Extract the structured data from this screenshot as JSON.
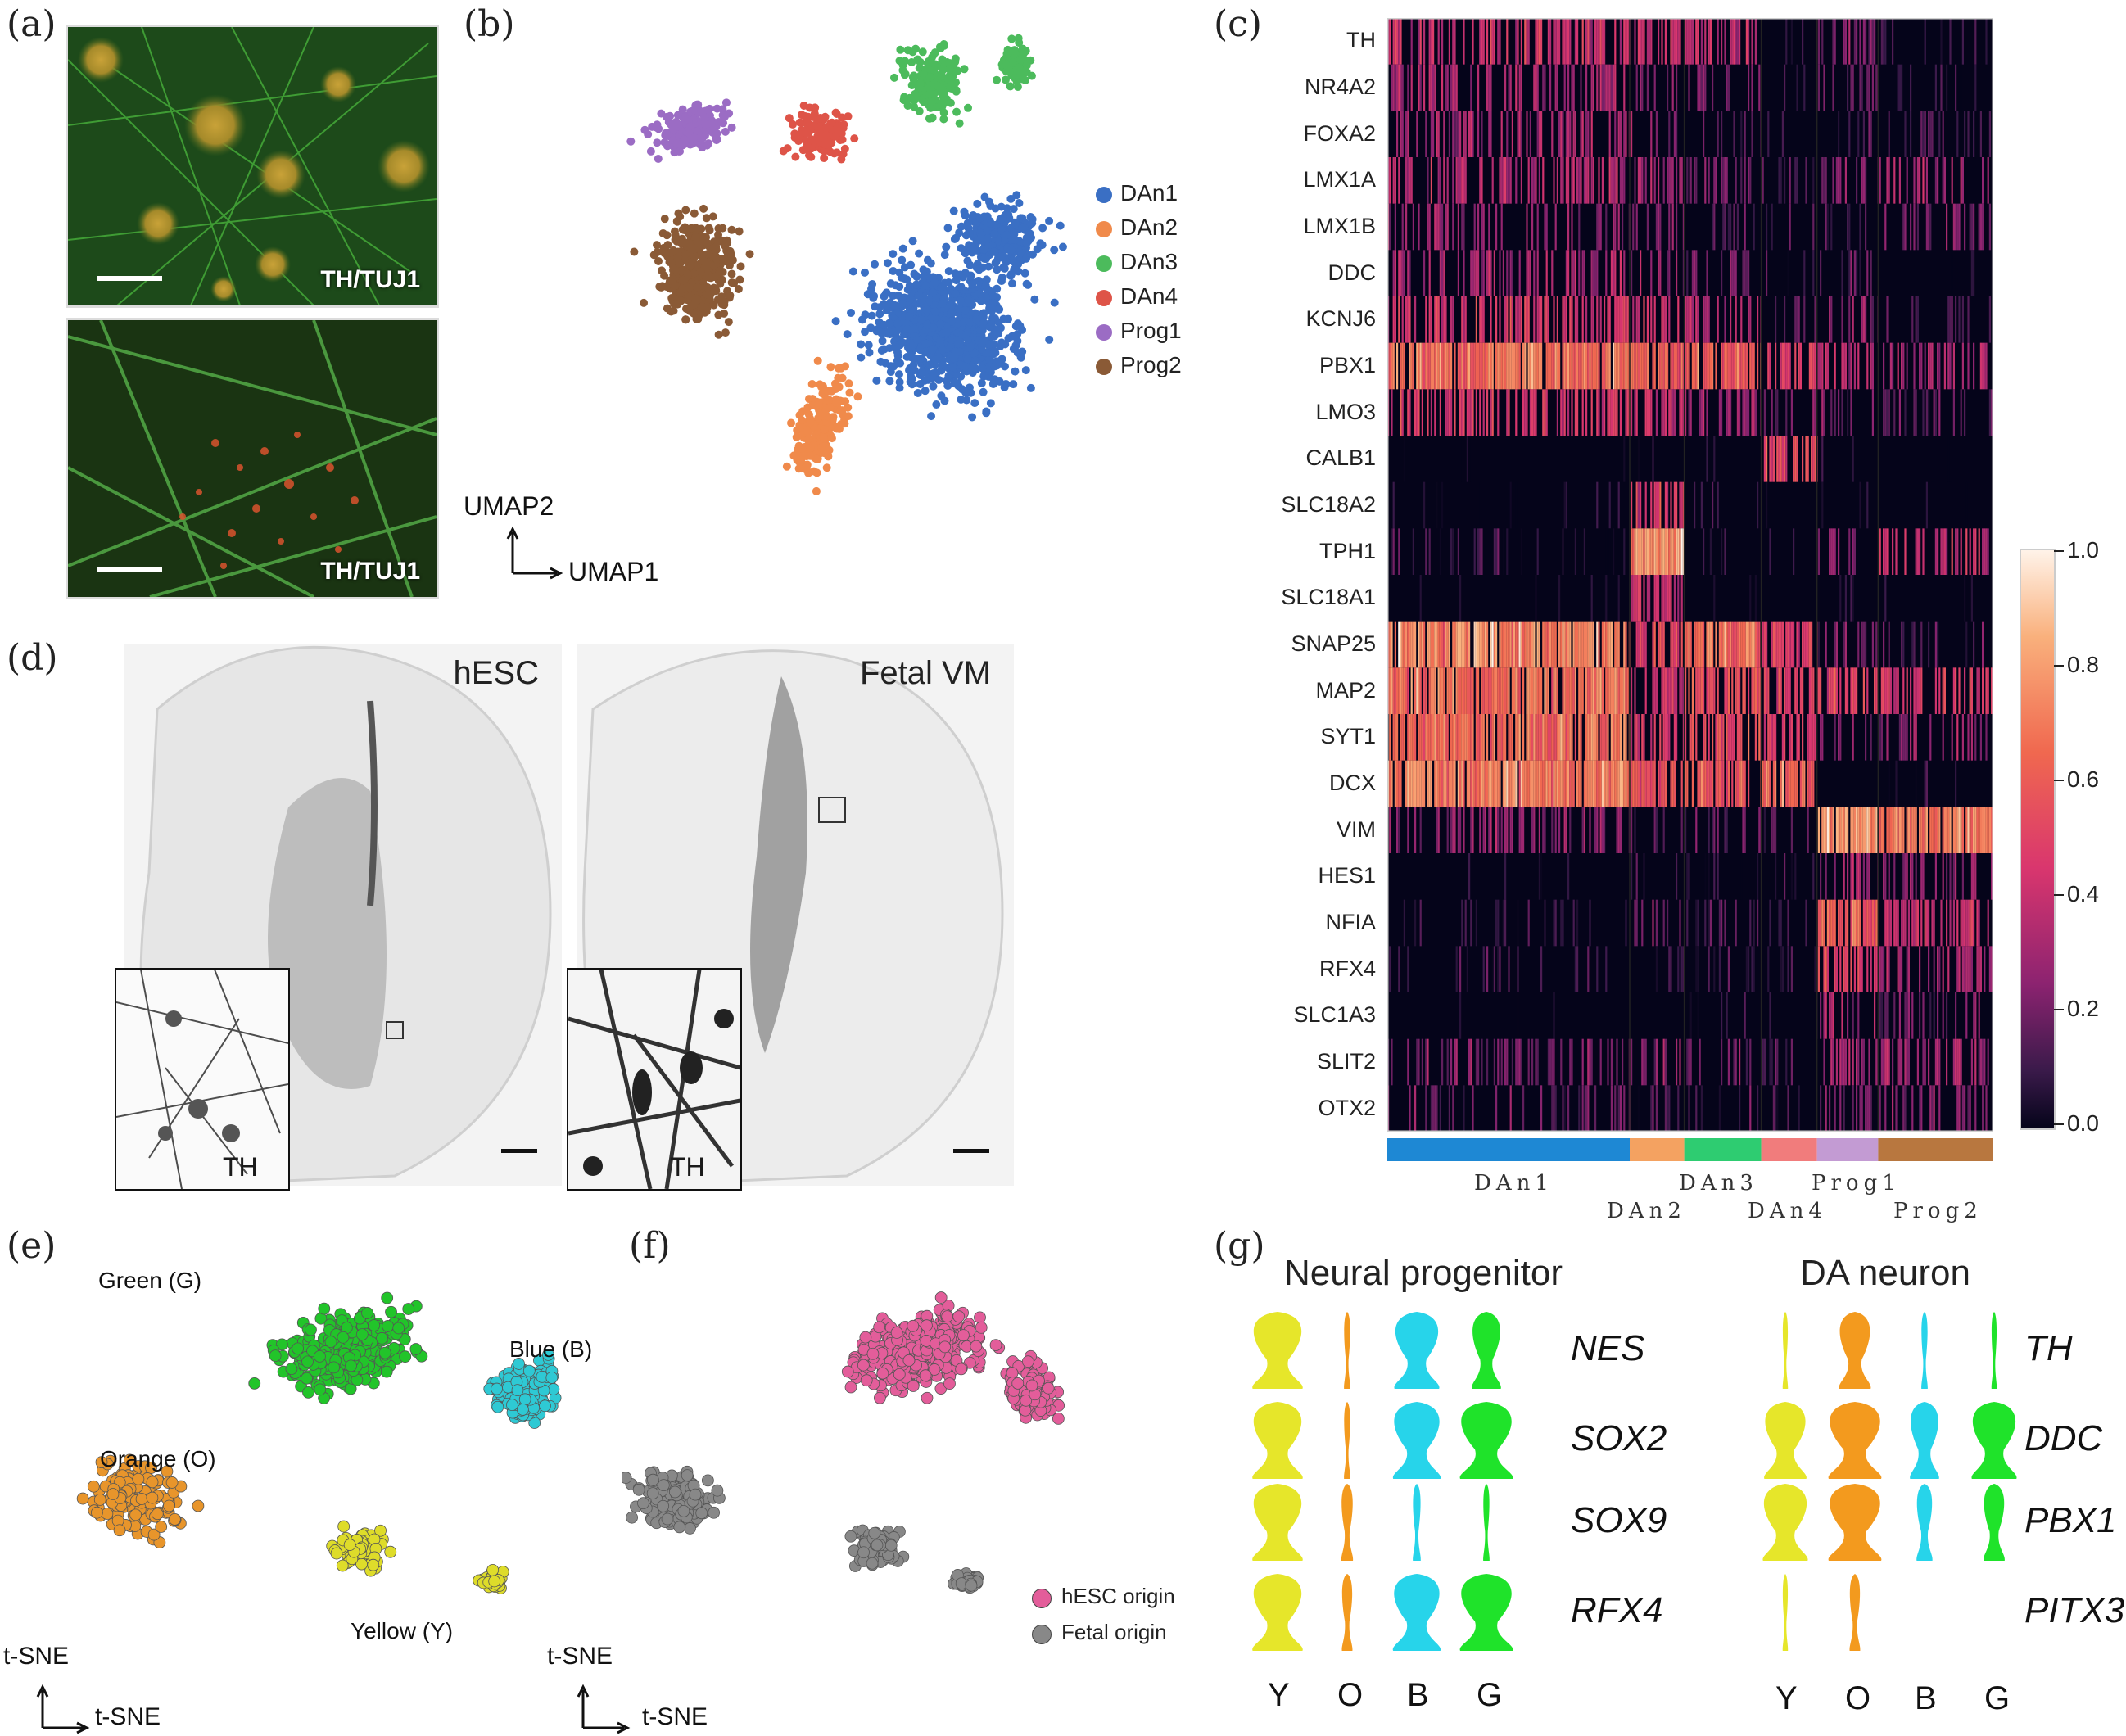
{
  "panels": {
    "a": "(a)",
    "b": "(b)",
    "c": "(c)",
    "d": "(d)",
    "e": "(e)",
    "f": "(f)",
    "g": "(g)"
  },
  "panel_a": {
    "top_label": "TH/TUJ1",
    "bottom_label": "TH/TUJ1"
  },
  "panel_b": {
    "xlabel": "UMAP1",
    "ylabel": "UMAP2",
    "legend": [
      {
        "name": "DAn1",
        "color": "#3a6fc4"
      },
      {
        "name": "DAn2",
        "color": "#f08a4b"
      },
      {
        "name": "DAn3",
        "color": "#4cbb5c"
      },
      {
        "name": "DAn4",
        "color": "#de5448"
      },
      {
        "name": "Prog1",
        "color": "#9b6cc4"
      },
      {
        "name": "Prog2",
        "color": "#8a5a36"
      }
    ]
  },
  "panel_c": {
    "genes": [
      "TH",
      "NR4A2",
      "FOXA2",
      "LMX1A",
      "LMX1B",
      "DDC",
      "KCNJ6",
      "PBX1",
      "LMO3",
      "CALB1",
      "SLC18A2",
      "TPH1",
      "SLC18A1",
      "SNAP25",
      "MAP2",
      "SYT1",
      "DCX",
      "VIM",
      "HES1",
      "NFIA",
      "RFX4",
      "SLC1A3",
      "SLIT2",
      "OTX2"
    ],
    "colorbar_ticks": [
      "1.0",
      "0.8",
      "0.6",
      "0.4",
      "0.2",
      "0.0"
    ],
    "groups_top": [
      "DAn1",
      "DAn3",
      "Prog1"
    ],
    "groups_bottom": [
      "DAn2",
      "DAn4",
      "Prog2"
    ],
    "group_bar": [
      {
        "name": "DAn1",
        "color": "#1e88d4"
      },
      {
        "name": "DAn2",
        "color": "#f4a261"
      },
      {
        "name": "DAn3",
        "color": "#2ecc71"
      },
      {
        "name": "DAn4",
        "color": "#f17c7c"
      },
      {
        "name": "Prog1",
        "color": "#c39bd3"
      },
      {
        "name": "Prog2",
        "color": "#b8773f"
      }
    ]
  },
  "panel_d": {
    "left_title": "hESC",
    "right_title": "Fetal VM",
    "left_inset_label": "TH",
    "right_inset_label": "TH"
  },
  "panel_e": {
    "clusters": [
      {
        "name": "Green (G)",
        "color": "#22c42a"
      },
      {
        "name": "Blue (B)",
        "color": "#2ec9d4"
      },
      {
        "name": "Orange (O)",
        "color": "#e8952b"
      },
      {
        "name": "Yellow (Y)",
        "color": "#dedc2a"
      }
    ],
    "xlabel": "t-SNE",
    "ylabel": "t-SNE"
  },
  "panel_f": {
    "legend": [
      {
        "name": "hESC origin",
        "color": "#e35d9a"
      },
      {
        "name": "Fetal origin",
        "color": "#888888"
      }
    ],
    "xlabel": "t-SNE",
    "ylabel": "t-SNE"
  },
  "panel_g": {
    "left_title": "Neural progenitor",
    "right_title": "DA neuron",
    "left_genes": [
      "NES",
      "SOX2",
      "SOX9",
      "RFX4"
    ],
    "right_genes": [
      "TH",
      "DDC",
      "PBX1",
      "PITX3"
    ],
    "letters": [
      "Y",
      "O",
      "B",
      "G"
    ],
    "colors": [
      "#e6e62a",
      "#f39a1e",
      "#27d4ea",
      "#1fe32a"
    ],
    "left_widths": [
      [
        0.95,
        0.12,
        0.85,
        0.55
      ],
      [
        0.95,
        0.12,
        0.9,
        1.0
      ],
      [
        0.95,
        0.22,
        0.15,
        0.12
      ],
      [
        0.95,
        0.2,
        0.9,
        1.0
      ]
    ],
    "right_widths": [
      [
        0.1,
        0.6,
        0.12,
        0.1
      ],
      [
        0.8,
        1.0,
        0.55,
        0.85
      ],
      [
        0.85,
        1.0,
        0.3,
        0.4
      ],
      [
        0.1,
        0.2,
        0.0,
        0.0
      ]
    ]
  }
}
